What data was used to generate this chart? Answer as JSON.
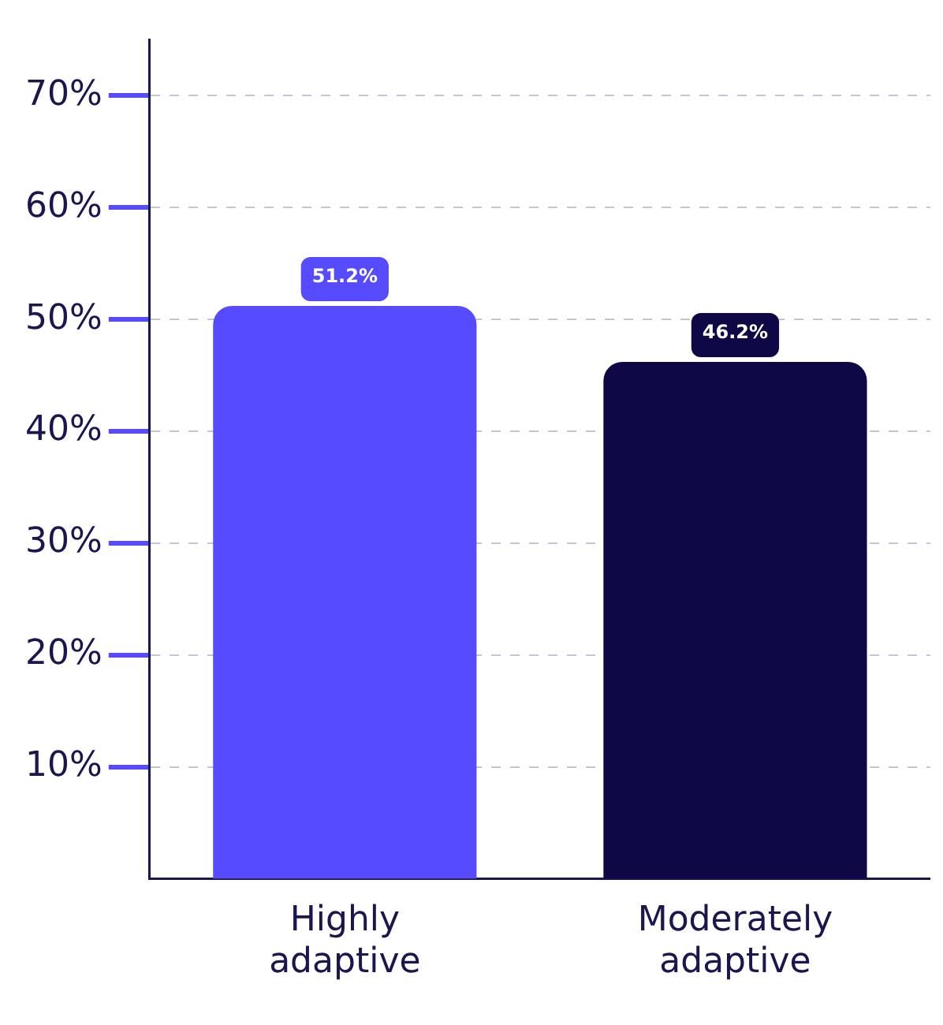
{
  "chart_data": {
    "type": "bar",
    "categories": [
      "Highly adaptive",
      "Moderately adaptive"
    ],
    "values": [
      51.2,
      46.2
    ],
    "colors": [
      "#574bff",
      "#0e0846"
    ],
    "value_labels": [
      "51.2%",
      "46.2%"
    ],
    "ylim": [
      0,
      75
    ],
    "yticks": [
      {
        "value": 10,
        "label": "10%"
      },
      {
        "value": 20,
        "label": "20%"
      },
      {
        "value": 30,
        "label": "30%"
      },
      {
        "value": 40,
        "label": "40%"
      },
      {
        "value": 50,
        "label": "50%"
      },
      {
        "value": 60,
        "label": "60%"
      },
      {
        "value": 70,
        "label": "70%"
      }
    ],
    "grid": "y"
  }
}
